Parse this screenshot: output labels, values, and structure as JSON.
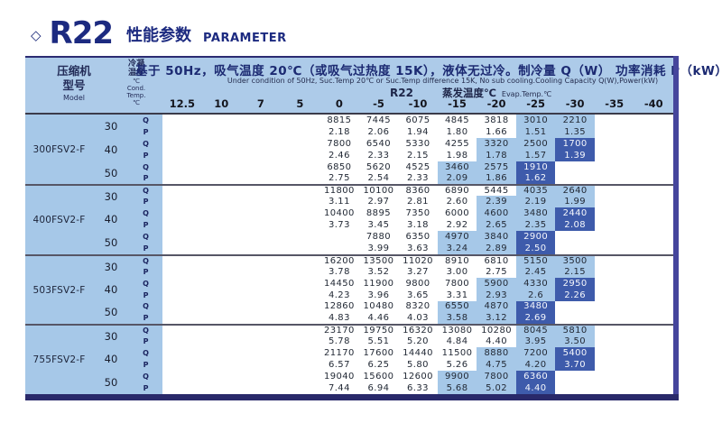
{
  "title": {
    "diamond": "◇",
    "product": "R22",
    "subtitle_cn": "性能参数",
    "subtitle_en": "PARAMETER"
  },
  "header": {
    "model_col": {
      "cn1": "压缩机",
      "cn2": "型号",
      "en": "Model"
    },
    "cond_col": {
      "cn1": "冷凝",
      "cn2": "温度",
      "cn3": "℃",
      "en1": "Cond.",
      "en2": "Temp.",
      "en3": "℃"
    },
    "condition_cn": "基于 50Hz，吸气温度 20℃（或吸气过热度 15K），液体无过冷。制冷量 Q（W） 功率消耗 P（kW）",
    "condition_en": "Under condition of 50Hz, Suc.Temp 20℃ or Suc.Temp difference 15K, No sub cooling.Cooling Capacity Q(W),Power(kW)",
    "refrigerant": "R22",
    "evap_label_cn": "蒸发温度℃",
    "evap_label_en": "Evap.Temp.℃",
    "evap_temps": [
      "12.5",
      "10",
      "7",
      "5",
      "0",
      "-5",
      "-10",
      "-15",
      "-20",
      "-25",
      "-30",
      "-35",
      "-40"
    ],
    "data_temp_range": [
      "0",
      "-5",
      "-10",
      "-15",
      "-20",
      "-25",
      "-30"
    ]
  },
  "colors": {
    "navy_title": "#1c2a80",
    "header_bg": "#adcbe9",
    "panel_blue": "#a6c8e8",
    "highlight_light": "#a6c8e8",
    "highlight_dark": "#3e5bab",
    "separator": "#565666",
    "bottom_bar": "#29296a",
    "right_bar": "#45459c"
  },
  "blocks": [
    {
      "model": "300FSV2-F",
      "groups": [
        {
          "cond": "30",
          "rows": [
            {
              "label": "Q",
              "cells": [
                [
                  "8815",
                  "w"
                ],
                [
                  "7445",
                  "w"
                ],
                [
                  "6075",
                  "w"
                ],
                [
                  "4845",
                  "w"
                ],
                [
                  "3818",
                  "w"
                ],
                [
                  "3010",
                  "l"
                ],
                [
                  "2210",
                  "l"
                ]
              ]
            },
            {
              "label": "P",
              "cells": [
                [
                  "2.18",
                  "w"
                ],
                [
                  "2.06",
                  "w"
                ],
                [
                  "1.94",
                  "w"
                ],
                [
                  "1.80",
                  "w"
                ],
                [
                  "1.66",
                  "w"
                ],
                [
                  "1.51",
                  "l"
                ],
                [
                  "1.35",
                  "l"
                ]
              ]
            }
          ]
        },
        {
          "cond": "40",
          "rows": [
            {
              "label": "Q",
              "cells": [
                [
                  "7800",
                  "w"
                ],
                [
                  "6540",
                  "w"
                ],
                [
                  "5330",
                  "w"
                ],
                [
                  "4255",
                  "w"
                ],
                [
                  "3320",
                  "l"
                ],
                [
                  "2500",
                  "l"
                ],
                [
                  "1700",
                  "d"
                ]
              ]
            },
            {
              "label": "P",
              "cells": [
                [
                  "2.46",
                  "w"
                ],
                [
                  "2.33",
                  "w"
                ],
                [
                  "2.15",
                  "w"
                ],
                [
                  "1.98",
                  "w"
                ],
                [
                  "1.78",
                  "l"
                ],
                [
                  "1.57",
                  "l"
                ],
                [
                  "1.39",
                  "d"
                ]
              ]
            }
          ]
        },
        {
          "cond": "50",
          "rows": [
            {
              "label": "Q",
              "cells": [
                [
                  "6850",
                  "w"
                ],
                [
                  "5620",
                  "w"
                ],
                [
                  "4525",
                  "w"
                ],
                [
                  "3460",
                  "l"
                ],
                [
                  "2575",
                  "l"
                ],
                [
                  "1910",
                  "d"
                ],
                [
                  "",
                  ""
                ]
              ]
            },
            {
              "label": "P",
              "cells": [
                [
                  "2.75",
                  "w"
                ],
                [
                  "2.54",
                  "w"
                ],
                [
                  "2.33",
                  "w"
                ],
                [
                  "2.09",
                  "l"
                ],
                [
                  "1.86",
                  "l"
                ],
                [
                  "1.62",
                  "d"
                ],
                [
                  "",
                  ""
                ]
              ]
            }
          ]
        }
      ]
    },
    {
      "model": "400FSV2-F",
      "groups": [
        {
          "cond": "30",
          "rows": [
            {
              "label": "Q",
              "cells": [
                [
                  "11800",
                  "w"
                ],
                [
                  "10100",
                  "w"
                ],
                [
                  "8360",
                  "w"
                ],
                [
                  "6890",
                  "w"
                ],
                [
                  "5445",
                  "w"
                ],
                [
                  "4035",
                  "l"
                ],
                [
                  "2640",
                  "l"
                ]
              ]
            },
            {
              "label": "P",
              "cells": [
                [
                  "3.11",
                  "w"
                ],
                [
                  "2.97",
                  "w"
                ],
                [
                  "2.81",
                  "w"
                ],
                [
                  "2.60",
                  "w"
                ],
                [
                  "2.39",
                  "l"
                ],
                [
                  "2.19",
                  "l"
                ],
                [
                  "1.99",
                  "l"
                ]
              ]
            }
          ]
        },
        {
          "cond": "40",
          "rows": [
            {
              "label": "Q",
              "cells": [
                [
                  "10400",
                  "w"
                ],
                [
                  "8895",
                  "w"
                ],
                [
                  "7350",
                  "w"
                ],
                [
                  "6000",
                  "w"
                ],
                [
                  "4600",
                  "l"
                ],
                [
                  "3480",
                  "l"
                ],
                [
                  "2440",
                  "d"
                ]
              ]
            },
            {
              "label": "P",
              "cells": [
                [
                  "3.73",
                  "w"
                ],
                [
                  "3.45",
                  "w"
                ],
                [
                  "3.18",
                  "w"
                ],
                [
                  "2.92",
                  "w"
                ],
                [
                  "2.65",
                  "l"
                ],
                [
                  "2.35",
                  "l"
                ],
                [
                  "2.08",
                  "d"
                ]
              ]
            }
          ]
        },
        {
          "cond": "50",
          "rows": [
            {
              "label": "Q",
              "cells": [
                [
                  "",
                  ""
                ],
                [
                  "7880",
                  "w"
                ],
                [
                  "6350",
                  "w"
                ],
                [
                  "4970",
                  "l"
                ],
                [
                  "3840",
                  "l"
                ],
                [
                  "2900",
                  "d"
                ],
                [
                  "",
                  ""
                ]
              ]
            },
            {
              "label": "P",
              "cells": [
                [
                  "",
                  ""
                ],
                [
                  "3.99",
                  "w"
                ],
                [
                  "3.63",
                  "w"
                ],
                [
                  "3.24",
                  "l"
                ],
                [
                  "2.89",
                  "l"
                ],
                [
                  "2.50",
                  "d"
                ],
                [
                  "",
                  ""
                ]
              ]
            }
          ]
        }
      ]
    },
    {
      "model": "503FSV2-F",
      "groups": [
        {
          "cond": "30",
          "rows": [
            {
              "label": "Q",
              "cells": [
                [
                  "16200",
                  "w"
                ],
                [
                  "13500",
                  "w"
                ],
                [
                  "11020",
                  "w"
                ],
                [
                  "8910",
                  "w"
                ],
                [
                  "6810",
                  "w"
                ],
                [
                  "5150",
                  "l"
                ],
                [
                  "3500",
                  "l"
                ]
              ]
            },
            {
              "label": "P",
              "cells": [
                [
                  "3.78",
                  "w"
                ],
                [
                  "3.52",
                  "w"
                ],
                [
                  "3.27",
                  "w"
                ],
                [
                  "3.00",
                  "w"
                ],
                [
                  "2.75",
                  "w"
                ],
                [
                  "2.45",
                  "l"
                ],
                [
                  "2.15",
                  "l"
                ]
              ]
            }
          ]
        },
        {
          "cond": "40",
          "rows": [
            {
              "label": "Q",
              "cells": [
                [
                  "14450",
                  "w"
                ],
                [
                  "11900",
                  "w"
                ],
                [
                  "9800",
                  "w"
                ],
                [
                  "7800",
                  "w"
                ],
                [
                  "5900",
                  "l"
                ],
                [
                  "4330",
                  "l"
                ],
                [
                  "2950",
                  "d"
                ]
              ]
            },
            {
              "label": "P",
              "cells": [
                [
                  "4.23",
                  "w"
                ],
                [
                  "3.96",
                  "w"
                ],
                [
                  "3.65",
                  "w"
                ],
                [
                  "3.31",
                  "w"
                ],
                [
                  "2.93",
                  "l"
                ],
                [
                  "2.6",
                  "l"
                ],
                [
                  "2.26",
                  "d"
                ]
              ]
            }
          ]
        },
        {
          "cond": "50",
          "rows": [
            {
              "label": "Q",
              "cells": [
                [
                  "12860",
                  "w"
                ],
                [
                  "10480",
                  "w"
                ],
                [
                  "8320",
                  "w"
                ],
                [
                  "6550",
                  "l"
                ],
                [
                  "4870",
                  "l"
                ],
                [
                  "3480",
                  "d"
                ],
                [
                  "",
                  ""
                ]
              ]
            },
            {
              "label": "P",
              "cells": [
                [
                  "4.83",
                  "w"
                ],
                [
                  "4.46",
                  "w"
                ],
                [
                  "4.03",
                  "w"
                ],
                [
                  "3.58",
                  "l"
                ],
                [
                  "3.12",
                  "l"
                ],
                [
                  "2.69",
                  "d"
                ],
                [
                  "",
                  ""
                ]
              ]
            }
          ]
        }
      ]
    },
    {
      "model": "755FSV2-F",
      "groups": [
        {
          "cond": "30",
          "rows": [
            {
              "label": "Q",
              "cells": [
                [
                  "23170",
                  "w"
                ],
                [
                  "19750",
                  "w"
                ],
                [
                  "16320",
                  "w"
                ],
                [
                  "13080",
                  "w"
                ],
                [
                  "10280",
                  "w"
                ],
                [
                  "8045",
                  "l"
                ],
                [
                  "5810",
                  "l"
                ]
              ]
            },
            {
              "label": "P",
              "cells": [
                [
                  "5.78",
                  "w"
                ],
                [
                  "5.51",
                  "w"
                ],
                [
                  "5.20",
                  "w"
                ],
                [
                  "4.84",
                  "w"
                ],
                [
                  "4.40",
                  "w"
                ],
                [
                  "3.95",
                  "l"
                ],
                [
                  "3.50",
                  "l"
                ]
              ]
            }
          ]
        },
        {
          "cond": "40",
          "rows": [
            {
              "label": "Q",
              "cells": [
                [
                  "21170",
                  "w"
                ],
                [
                  "17600",
                  "w"
                ],
                [
                  "14440",
                  "w"
                ],
                [
                  "11500",
                  "w"
                ],
                [
                  "8880",
                  "l"
                ],
                [
                  "7200",
                  "l"
                ],
                [
                  "5400",
                  "d"
                ]
              ]
            },
            {
              "label": "P",
              "cells": [
                [
                  "6.57",
                  "w"
                ],
                [
                  "6.25",
                  "w"
                ],
                [
                  "5.80",
                  "w"
                ],
                [
                  "5.26",
                  "w"
                ],
                [
                  "4.75",
                  "l"
                ],
                [
                  "4.20",
                  "l"
                ],
                [
                  "3.70",
                  "d"
                ]
              ]
            }
          ]
        },
        {
          "cond": "50",
          "rows": [
            {
              "label": "Q",
              "cells": [
                [
                  "19040",
                  "w"
                ],
                [
                  "15600",
                  "w"
                ],
                [
                  "12600",
                  "w"
                ],
                [
                  "9900",
                  "l"
                ],
                [
                  "7800",
                  "l"
                ],
                [
                  "6360",
                  "d"
                ],
                [
                  "",
                  ""
                ]
              ]
            },
            {
              "label": "P",
              "cells": [
                [
                  "7.44",
                  "w"
                ],
                [
                  "6.94",
                  "w"
                ],
                [
                  "6.33",
                  "w"
                ],
                [
                  "5.68",
                  "l"
                ],
                [
                  "5.02",
                  "l"
                ],
                [
                  "4.40",
                  "d"
                ],
                [
                  "",
                  ""
                ]
              ]
            }
          ]
        }
      ]
    }
  ]
}
